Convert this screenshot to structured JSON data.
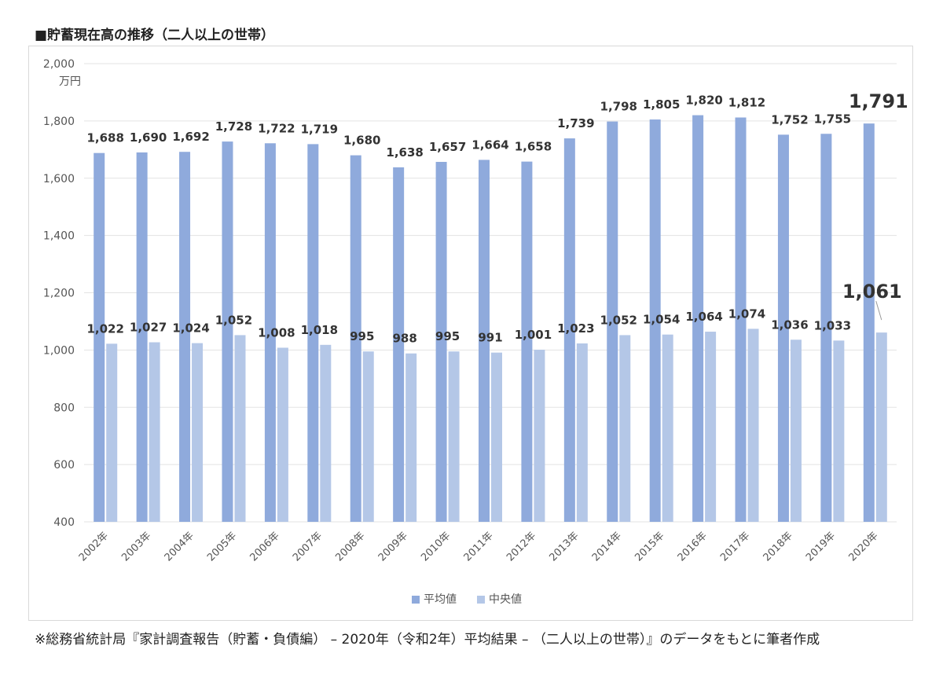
{
  "title": "■貯蓄現在高の推移（二人以上の世帯）",
  "note": "※総務省統計局『家計調査報告（貯蓄・負債編） – 2020年（令和2年）平均結果 – （二人以上の世帯）』のデータをもとに筆者作成",
  "chart_data": {
    "type": "bar",
    "title": "■貯蓄現在高の推移（二人以上の世帯）",
    "unit_label": "万円",
    "categories": [
      "2002年",
      "2003年",
      "2004年",
      "2005年",
      "2006年",
      "2007年",
      "2008年",
      "2009年",
      "2010年",
      "2011年",
      "2012年",
      "2013年",
      "2014年",
      "2015年",
      "2016年",
      "2017年",
      "2018年",
      "2019年",
      "2020年"
    ],
    "series": [
      {
        "name": "平均値",
        "color": "#8faadc",
        "values": [
          1688,
          1690,
          1692,
          1728,
          1722,
          1719,
          1680,
          1638,
          1657,
          1664,
          1658,
          1739,
          1798,
          1805,
          1820,
          1812,
          1752,
          1755,
          1791
        ]
      },
      {
        "name": "中央値",
        "color": "#b4c7e7",
        "values": [
          1022,
          1027,
          1024,
          1052,
          1008,
          1018,
          995,
          988,
          995,
          991,
          1001,
          1023,
          1052,
          1054,
          1064,
          1074,
          1036,
          1033,
          1061
        ]
      }
    ],
    "ylim": [
      400,
      2000
    ],
    "yticks": [
      400,
      600,
      800,
      1000,
      1200,
      1400,
      1600,
      1800,
      2000
    ],
    "ytick_labels": [
      "400",
      "600",
      "800",
      "1,000",
      "1,200",
      "1,400",
      "1,600",
      "1,800",
      "2,000"
    ],
    "value_labels_avg": [
      "1,688",
      "1,690",
      "1,692",
      "1,728",
      "1,722",
      "1,719",
      "1,680",
      "1,638",
      "1,657",
      "1,664",
      "1,658",
      "1,739",
      "1,798",
      "1,805",
      "1,820",
      "1,812",
      "1,752",
      "1,755",
      "1,791"
    ],
    "value_labels_med": [
      "1,022",
      "1,027",
      "1,024",
      "1,052",
      "1,008",
      "1,018",
      "995",
      "988",
      "995",
      "991",
      "1,001",
      "1,023",
      "1,052",
      "1,054",
      "1,064",
      "1,074",
      "1,036",
      "1,033",
      "1,061"
    ],
    "grid": true,
    "legend": "bottom"
  }
}
